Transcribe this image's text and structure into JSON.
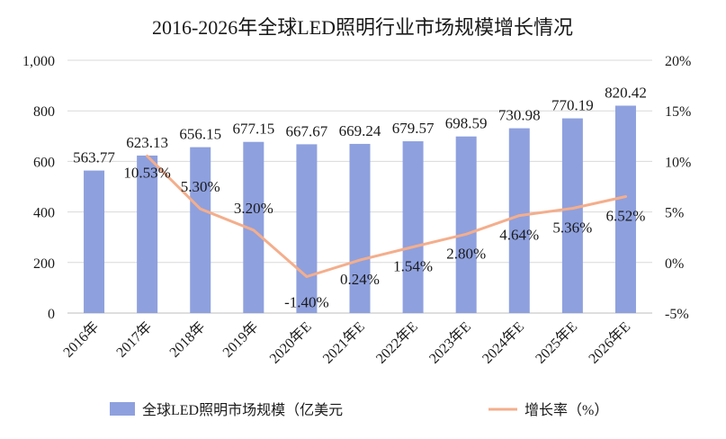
{
  "chart_data": {
    "type": "bar",
    "title": "2016-2026年全球LED照明行业市场规模增长情况",
    "categories": [
      "2016年",
      "2017年",
      "2018年",
      "2019年",
      "2020年E",
      "2021年E",
      "2022年E",
      "2023年E",
      "2024年E",
      "2025年E",
      "2026年E"
    ],
    "series": [
      {
        "name": "全球LED照明市场规模（亿美元",
        "type": "bar",
        "axis": "left",
        "color": "#8EA0DE",
        "values": [
          563.77,
          623.13,
          656.15,
          677.15,
          667.67,
          669.24,
          679.57,
          698.59,
          730.98,
          770.19,
          820.42
        ],
        "labels": [
          "563.77",
          "623.13",
          "656.15",
          "677.15",
          "667.67",
          "669.24",
          "679.57",
          "698.59",
          "730.98",
          "770.19",
          "820.42"
        ]
      },
      {
        "name": "增长率（%）",
        "type": "line",
        "axis": "right",
        "color": "#F4AE8C",
        "values": [
          null,
          10.53,
          5.3,
          3.2,
          -1.4,
          0.24,
          1.54,
          2.8,
          4.64,
          5.36,
          6.52
        ],
        "labels": [
          "",
          "10.53%",
          "5.30%",
          "3.20%",
          "-1.40%",
          "0.24%",
          "1.54%",
          "2.80%",
          "4.64%",
          "5.36%",
          "6.52%"
        ]
      }
    ],
    "y_left": {
      "min": 0,
      "max": 1000,
      "ticks": [
        0,
        200,
        400,
        600,
        800,
        1000
      ],
      "tick_labels": [
        "0",
        "200",
        "400",
        "600",
        "800",
        "1,000"
      ]
    },
    "y_right": {
      "min": -5,
      "max": 20,
      "ticks": [
        -5,
        0,
        5,
        10,
        15,
        20
      ],
      "tick_labels": [
        "-5%",
        "0%",
        "5%",
        "10%",
        "15%",
        "20%"
      ]
    },
    "legend_position": "bottom",
    "grid": "horizontal"
  }
}
